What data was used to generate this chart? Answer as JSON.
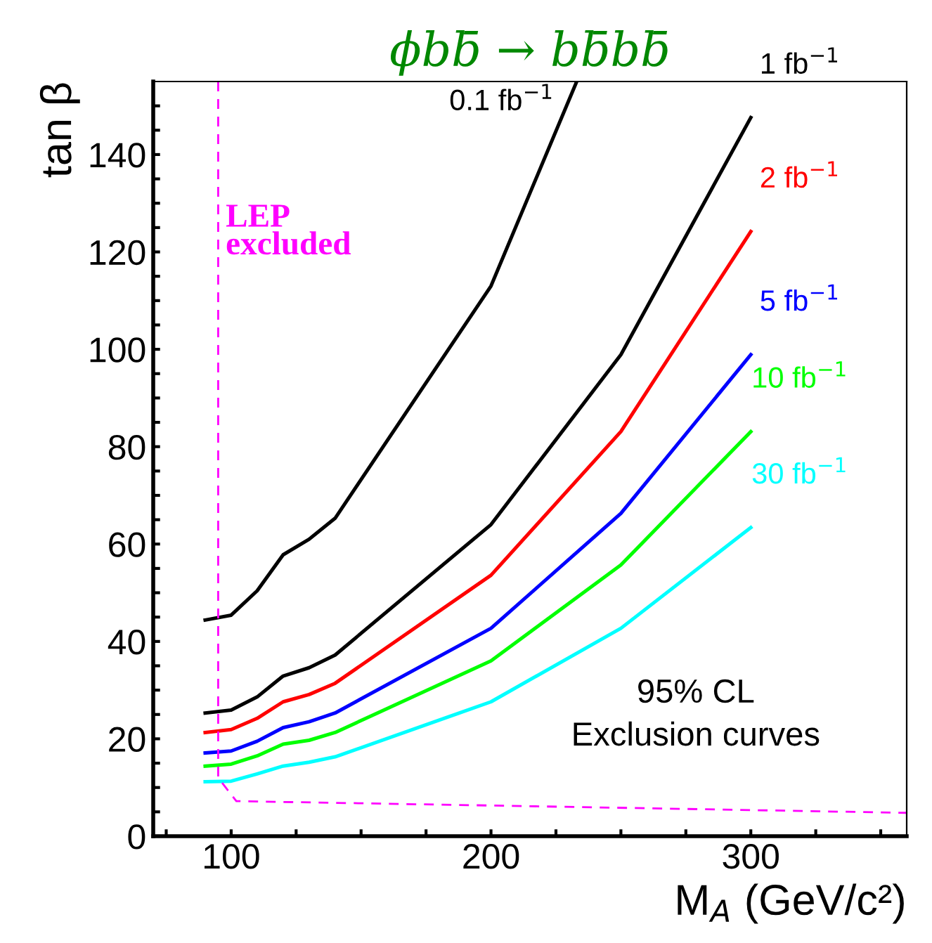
{
  "chart_data": {
    "type": "line",
    "title": "ϕbb̄ → bb̄bb̄",
    "xlabel": "M$_{A}$ (GeV/c²)",
    "ylabel": "tan β",
    "xlim": [
      70,
      360
    ],
    "ylim": [
      0,
      155
    ],
    "xticks": [
      {
        "value": 75,
        "label": null
      },
      100,
      {
        "value": 125,
        "label": null
      },
      {
        "value": 150,
        "label": null
      },
      {
        "value": 175,
        "label": null
      },
      200,
      {
        "value": 225,
        "label": null
      },
      {
        "value": 250,
        "label": null
      },
      {
        "value": 275,
        "label": null
      },
      300,
      {
        "value": 325,
        "label": null
      },
      {
        "value": 350,
        "label": null
      }
    ],
    "yticks": [
      0,
      {
        "value": 5,
        "label": null
      },
      {
        "value": 10,
        "label": null
      },
      {
        "value": 15,
        "label": null
      },
      20,
      {
        "value": 25,
        "label": null
      },
      {
        "value": 30,
        "label": null
      },
      {
        "value": 35,
        "label": null
      },
      40,
      {
        "value": 45,
        "label": null
      },
      {
        "value": 50,
        "label": null
      },
      {
        "value": 55,
        "label": null
      },
      60,
      {
        "value": 65,
        "label": null
      },
      {
        "value": 70,
        "label": null
      },
      {
        "value": 75,
        "label": null
      },
      80,
      {
        "value": 85,
        "label": null
      },
      {
        "value": 90,
        "label": null
      },
      {
        "value": 95,
        "label": null
      },
      100,
      {
        "value": 105,
        "label": null
      },
      {
        "value": 110,
        "label": null
      },
      {
        "value": 115,
        "label": null
      },
      120,
      {
        "value": 125,
        "label": null
      },
      {
        "value": 130,
        "label": null
      },
      {
        "value": 135,
        "label": null
      },
      140,
      {
        "value": 145,
        "label": null
      },
      {
        "value": 150,
        "label": null
      }
    ],
    "grid": false,
    "legend": false,
    "marker": "none",
    "line_style": "solid",
    "series": [
      {
        "name": "0.1 fb$^{−1}$",
        "color": "#000000",
        "x": [
          90,
          100,
          110,
          120,
          130,
          140,
          200,
          233
        ],
        "values": [
          44.4,
          45.4,
          50.4,
          57.8,
          61.0,
          65.3,
          113,
          155
        ]
      },
      {
        "name": "1 fb$^{−1}$",
        "color": "#000000",
        "x": [
          90,
          100,
          110,
          120,
          130,
          140,
          200,
          250,
          300
        ],
        "values": [
          25.3,
          25.9,
          28.6,
          32.9,
          34.6,
          37.2,
          64,
          98.9,
          147.6
        ]
      },
      {
        "name": "2 fb$^{−1}$",
        "color": "#ff0000",
        "x": [
          90,
          100,
          110,
          120,
          130,
          140,
          200,
          250,
          300
        ],
        "values": [
          21.3,
          21.9,
          24.2,
          27.6,
          29.1,
          31.4,
          53.6,
          83.1,
          124.2
        ]
      },
      {
        "name": "5 fb$^{−1}$",
        "color": "#0000ff",
        "x": [
          90,
          100,
          110,
          120,
          130,
          140,
          200,
          250,
          300
        ],
        "values": [
          17.1,
          17.5,
          19.5,
          22.3,
          23.5,
          25.3,
          42.7,
          66.3,
          98.9
        ]
      },
      {
        "name": "10 fb$^{−1}$",
        "color": "#00ff00",
        "x": [
          90,
          100,
          110,
          120,
          130,
          140,
          200,
          250,
          300
        ],
        "values": [
          14.4,
          14.8,
          16.5,
          18.9,
          19.7,
          21.3,
          36.0,
          55.7,
          83.1
        ]
      },
      {
        "name": "30 fb$^{−1}$",
        "color": "#00ffff",
        "x": [
          90,
          100,
          110,
          120,
          130,
          140,
          200,
          250,
          300
        ],
        "values": [
          11.2,
          11.3,
          12.8,
          14.4,
          15.2,
          16.3,
          27.6,
          42.7,
          63.4
        ]
      },
      {
        "name": "LEP\nexcluded",
        "color": "#ff00ff",
        "line_style": "dashed",
        "x": [
          95,
          95,
          102,
          200,
          360
        ],
        "values": [
          155,
          12,
          7.2,
          6.3,
          4.8
        ]
      }
    ],
    "annotations": [
      "95% CL\nExclusion curves"
    ]
  }
}
